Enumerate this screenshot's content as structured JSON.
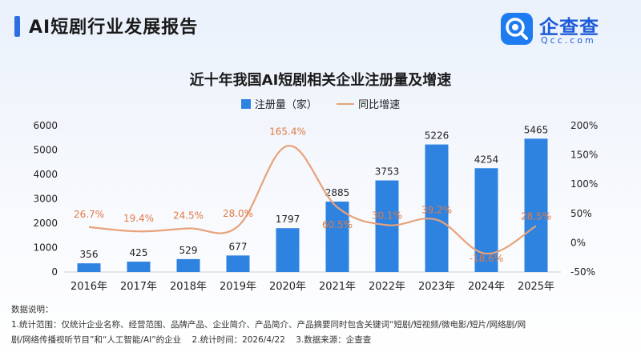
{
  "header": {
    "title": "AI短剧行业发展报告"
  },
  "logo": {
    "name": "企查查",
    "domain": "Qcc.com",
    "icon": "magnifier-q-icon",
    "color": "#1e7bf0"
  },
  "notes": {
    "heading": "数据说明：",
    "line1": "1.统计范围：仅统计企业名称、经营范围、品牌产品、企业简介、产品简介、产品摘要同时包含关键词“短剧/短视频/微电影/短片/网络剧/网",
    "line2_a": "剧/网络传播视听节目”和“人工智能/AI”的企业",
    "line2_b": "2.统计时间：2026/4/22",
    "line2_c": "3.数据来源：企查查"
  },
  "chart_data": {
    "type": "bar",
    "title": "近十年我国AI短剧相关企业注册量及增速",
    "categories": [
      "2016年",
      "2017年",
      "2018年",
      "2019年",
      "2020年",
      "2021年",
      "2022年",
      "2023年",
      "2024年",
      "2025年"
    ],
    "series": [
      {
        "name": "注册量（家）",
        "type": "bar",
        "axis": "left",
        "color": "#2f83e0",
        "values": [
          356,
          425,
          529,
          677,
          1797,
          2885,
          3753,
          5226,
          4254,
          5465
        ],
        "labels": [
          "356",
          "425",
          "529",
          "677",
          "1797",
          "2885",
          "3753",
          "5226",
          "4254",
          "5465"
        ]
      },
      {
        "name": "同比增速",
        "type": "line",
        "axis": "right",
        "color": "#e8a27a",
        "smooth": true,
        "values": [
          26.7,
          19.4,
          24.5,
          28.0,
          165.4,
          60.5,
          30.1,
          39.2,
          -18.6,
          28.5
        ],
        "labels": [
          "26.7%",
          "19.4%",
          "24.5%",
          "28.0%",
          "165.4%",
          "60.5%",
          "30.1%",
          "39.2%",
          "-18.6%",
          "28.5%"
        ]
      }
    ],
    "y_left": {
      "ylim": [
        0,
        6000
      ],
      "ticks": [
        "0",
        "1000",
        "2000",
        "3000",
        "4000",
        "5000",
        "6000"
      ],
      "tick_values": [
        0,
        1000,
        2000,
        3000,
        4000,
        5000,
        6000
      ]
    },
    "y_right": {
      "ylim": [
        -50,
        200
      ],
      "ticks": [
        "-50%",
        "0%",
        "50%",
        "100%",
        "150%",
        "200%"
      ],
      "tick_values": [
        -50,
        0,
        50,
        100,
        150,
        200
      ]
    },
    "grid": false,
    "legend": "top-center",
    "label_color_line": "#e07a45"
  }
}
